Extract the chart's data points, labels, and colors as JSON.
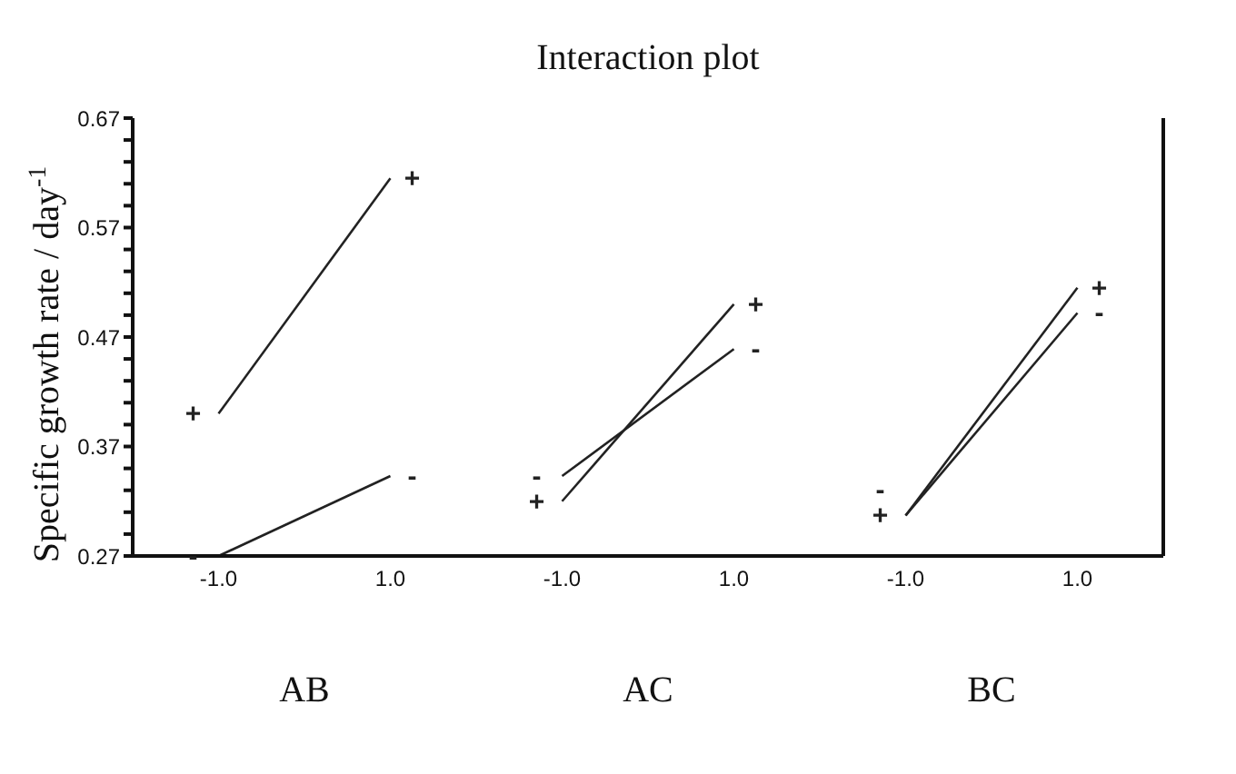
{
  "chart_data": {
    "type": "line",
    "title": "Interaction plot",
    "ylabel": "Specific growth rate / day$^{-1}$",
    "categories": [
      "-1.0",
      "1.0",
      "-1.0",
      "1.0",
      "-1.0",
      "1.0"
    ],
    "series": [
      {
        "name": "+",
        "color": "#222222",
        "values": [
          0.4,
          0.615,
          null,
          null,
          null,
          null
        ]
      },
      {
        "name": "-",
        "color": "#222222",
        "values": [
          0.27,
          0.343,
          null,
          null,
          null,
          null
        ]
      },
      {
        "name": "+",
        "color": "#222222",
        "values": [
          null,
          null,
          0.32,
          0.5,
          null,
          null
        ]
      },
      {
        "name": "-",
        "color": "#222222",
        "values": [
          null,
          null,
          0.343,
          0.459,
          null,
          null
        ]
      },
      {
        "name": "+",
        "color": "#222222",
        "values": [
          null,
          null,
          null,
          null,
          0.307,
          0.515
        ]
      },
      {
        "name": "-",
        "color": "#222222",
        "values": [
          null,
          null,
          null,
          null,
          0.307,
          0.492
        ]
      }
    ],
    "ylim": [
      0.27,
      0.67
    ],
    "yticks": [
      0.27,
      {
        "value": 0.29,
        "label": null
      },
      {
        "value": 0.31,
        "label": null
      },
      {
        "value": 0.33,
        "label": null
      },
      {
        "value": 0.35,
        "label": null
      },
      0.37,
      {
        "value": 0.39,
        "label": null
      },
      {
        "value": 0.41,
        "label": null
      },
      {
        "value": 0.43,
        "label": null
      },
      {
        "value": 0.45,
        "label": null
      },
      0.47,
      {
        "value": 0.49,
        "label": null
      },
      {
        "value": 0.51,
        "label": null
      },
      {
        "value": 0.53,
        "label": null
      },
      {
        "value": 0.55,
        "label": null
      },
      0.57,
      {
        "value": 0.59,
        "label": null
      },
      {
        "value": 0.61,
        "label": null
      },
      {
        "value": 0.63,
        "label": null
      },
      {
        "value": 0.65,
        "label": null
      },
      0.67
    ],
    "annotations": [
      "AB",
      "AC",
      "BC"
    ],
    "grid": false
  }
}
